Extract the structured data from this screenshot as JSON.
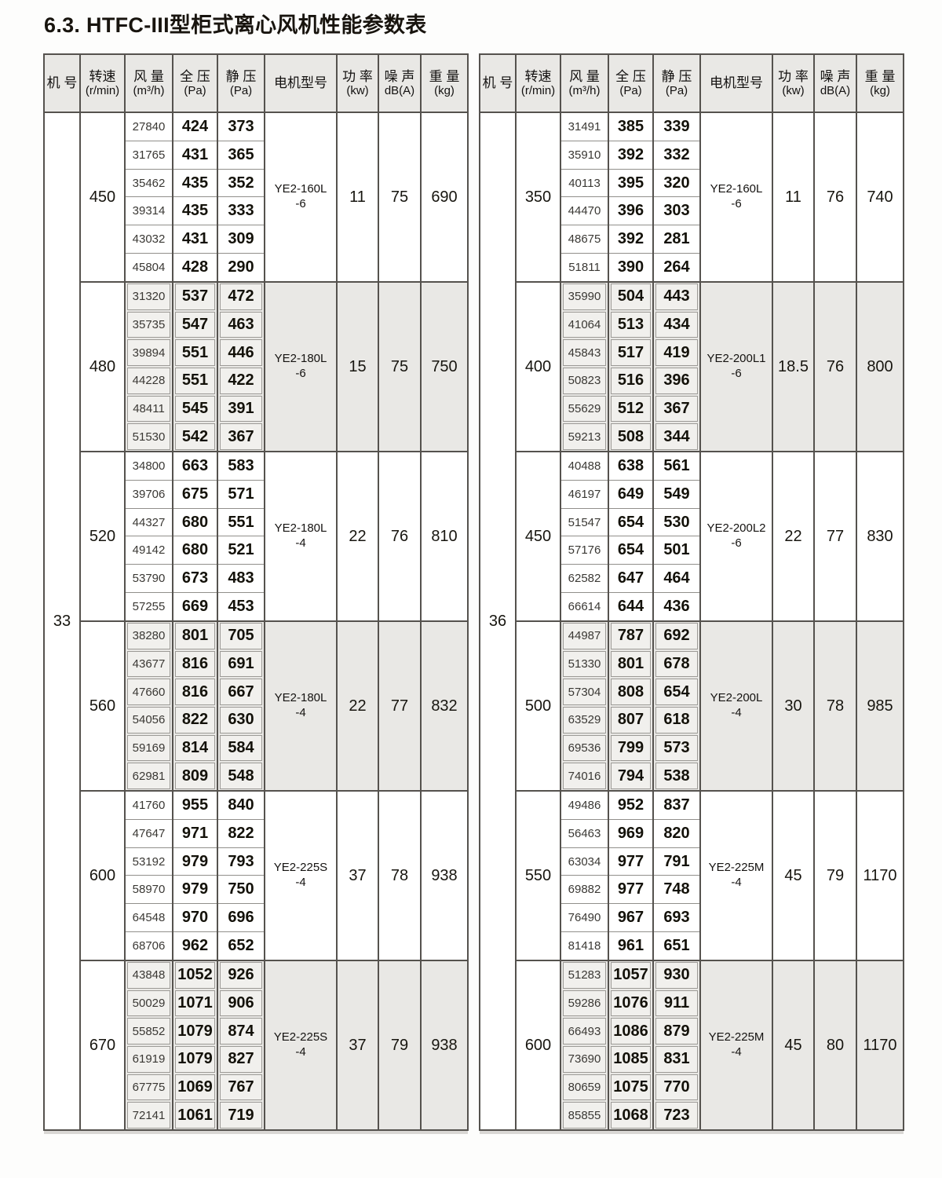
{
  "page": {
    "title": "6.3. HTFC-III型柜式离心风机性能参数表"
  },
  "tables": [
    {
      "unit_no": "33",
      "columns": [
        {
          "l1": "机 号",
          "l2": ""
        },
        {
          "l1": "转速",
          "l2": "(r/min)"
        },
        {
          "l1": "风 量",
          "l2": "(m³/h)"
        },
        {
          "l1": "全 压",
          "l2": "(Pa)"
        },
        {
          "l1": "静 压",
          "l2": "(Pa)"
        },
        {
          "l1": "电机型号",
          "l2": ""
        },
        {
          "l1": "功 率",
          "l2": "(kw)"
        },
        {
          "l1": "噪 声",
          "l2": "dB(A)"
        },
        {
          "l1": "重 量",
          "l2": "(kg)"
        }
      ],
      "groups": [
        {
          "speed": "450",
          "shaded": false,
          "flow": [
            "27840",
            "31765",
            "35462",
            "39314",
            "43032",
            "45804"
          ],
          "total_pressure": [
            "424",
            "431",
            "435",
            "435",
            "431",
            "428"
          ],
          "static_pressure": [
            "373",
            "365",
            "352",
            "333",
            "309",
            "290"
          ],
          "motor_l1": "YE2-160L",
          "motor_l2": "-6",
          "power": "11",
          "noise": "75",
          "weight": "690"
        },
        {
          "speed": "480",
          "shaded": true,
          "flow": [
            "31320",
            "35735",
            "39894",
            "44228",
            "48411",
            "51530"
          ],
          "total_pressure": [
            "537",
            "547",
            "551",
            "551",
            "545",
            "542"
          ],
          "static_pressure": [
            "472",
            "463",
            "446",
            "422",
            "391",
            "367"
          ],
          "motor_l1": "YE2-180L",
          "motor_l2": "-6",
          "power": "15",
          "noise": "75",
          "weight": "750"
        },
        {
          "speed": "520",
          "shaded": false,
          "flow": [
            "34800",
            "39706",
            "44327",
            "49142",
            "53790",
            "57255"
          ],
          "total_pressure": [
            "663",
            "675",
            "680",
            "680",
            "673",
            "669"
          ],
          "static_pressure": [
            "583",
            "571",
            "551",
            "521",
            "483",
            "453"
          ],
          "motor_l1": "YE2-180L",
          "motor_l2": "-4",
          "power": "22",
          "noise": "76",
          "weight": "810"
        },
        {
          "speed": "560",
          "shaded": true,
          "flow": [
            "38280",
            "43677",
            "47660",
            "54056",
            "59169",
            "62981"
          ],
          "total_pressure": [
            "801",
            "816",
            "816",
            "822",
            "814",
            "809"
          ],
          "static_pressure": [
            "705",
            "691",
            "667",
            "630",
            "584",
            "548"
          ],
          "motor_l1": "YE2-180L",
          "motor_l2": "-4",
          "power": "22",
          "noise": "77",
          "weight": "832"
        },
        {
          "speed": "600",
          "shaded": false,
          "flow": [
            "41760",
            "47647",
            "53192",
            "58970",
            "64548",
            "68706"
          ],
          "total_pressure": [
            "955",
            "971",
            "979",
            "979",
            "970",
            "962"
          ],
          "static_pressure": [
            "840",
            "822",
            "793",
            "750",
            "696",
            "652"
          ],
          "motor_l1": "YE2-225S",
          "motor_l2": "-4",
          "power": "37",
          "noise": "78",
          "weight": "938"
        },
        {
          "speed": "670",
          "shaded": true,
          "flow": [
            "43848",
            "50029",
            "55852",
            "61919",
            "67775",
            "72141"
          ],
          "total_pressure": [
            "1052",
            "1071",
            "1079",
            "1079",
            "1069",
            "1061"
          ],
          "static_pressure": [
            "926",
            "906",
            "874",
            "827",
            "767",
            "719"
          ],
          "motor_l1": "YE2-225S",
          "motor_l2": "-4",
          "power": "37",
          "noise": "79",
          "weight": "938"
        }
      ]
    },
    {
      "unit_no": "36",
      "columns": [
        {
          "l1": "机 号",
          "l2": ""
        },
        {
          "l1": "转速",
          "l2": "(r/min)"
        },
        {
          "l1": "风 量",
          "l2": "(m³/h)"
        },
        {
          "l1": "全 压",
          "l2": "(Pa)"
        },
        {
          "l1": "静 压",
          "l2": "(Pa)"
        },
        {
          "l1": "电机型号",
          "l2": ""
        },
        {
          "l1": "功 率",
          "l2": "(kw)"
        },
        {
          "l1": "噪 声",
          "l2": "dB(A)"
        },
        {
          "l1": "重 量",
          "l2": "(kg)"
        }
      ],
      "groups": [
        {
          "speed": "350",
          "shaded": false,
          "flow": [
            "31491",
            "35910",
            "40113",
            "44470",
            "48675",
            "51811"
          ],
          "total_pressure": [
            "385",
            "392",
            "395",
            "396",
            "392",
            "390"
          ],
          "static_pressure": [
            "339",
            "332",
            "320",
            "303",
            "281",
            "264"
          ],
          "motor_l1": "YE2-160L",
          "motor_l2": "-6",
          "power": "11",
          "noise": "76",
          "weight": "740"
        },
        {
          "speed": "400",
          "shaded": true,
          "flow": [
            "35990",
            "41064",
            "45843",
            "50823",
            "55629",
            "59213"
          ],
          "total_pressure": [
            "504",
            "513",
            "517",
            "516",
            "512",
            "508"
          ],
          "static_pressure": [
            "443",
            "434",
            "419",
            "396",
            "367",
            "344"
          ],
          "motor_l1": "YE2-200L1",
          "motor_l2": "-6",
          "power": "18.5",
          "noise": "76",
          "weight": "800"
        },
        {
          "speed": "450",
          "shaded": false,
          "flow": [
            "40488",
            "46197",
            "51547",
            "57176",
            "62582",
            "66614"
          ],
          "total_pressure": [
            "638",
            "649",
            "654",
            "654",
            "647",
            "644"
          ],
          "static_pressure": [
            "561",
            "549",
            "530",
            "501",
            "464",
            "436"
          ],
          "motor_l1": "YE2-200L2",
          "motor_l2": "-6",
          "power": "22",
          "noise": "77",
          "weight": "830"
        },
        {
          "speed": "500",
          "shaded": true,
          "flow": [
            "44987",
            "51330",
            "57304",
            "63529",
            "69536",
            "74016"
          ],
          "total_pressure": [
            "787",
            "801",
            "808",
            "807",
            "799",
            "794"
          ],
          "static_pressure": [
            "692",
            "678",
            "654",
            "618",
            "573",
            "538"
          ],
          "motor_l1": "YE2-200L",
          "motor_l2": "-4",
          "power": "30",
          "noise": "78",
          "weight": "985"
        },
        {
          "speed": "550",
          "shaded": false,
          "flow": [
            "49486",
            "56463",
            "63034",
            "69882",
            "76490",
            "81418"
          ],
          "total_pressure": [
            "952",
            "969",
            "977",
            "977",
            "967",
            "961"
          ],
          "static_pressure": [
            "837",
            "820",
            "791",
            "748",
            "693",
            "651"
          ],
          "motor_l1": "YE2-225M",
          "motor_l2": "-4",
          "power": "45",
          "noise": "79",
          "weight": "1170"
        },
        {
          "speed": "600",
          "shaded": true,
          "flow": [
            "51283",
            "59286",
            "66493",
            "73690",
            "80659",
            "85855"
          ],
          "total_pressure": [
            "1057",
            "1076",
            "1086",
            "1085",
            "1075",
            "1068"
          ],
          "static_pressure": [
            "930",
            "911",
            "879",
            "831",
            "770",
            "723"
          ],
          "motor_l1": "YE2-225M",
          "motor_l2": "-4",
          "power": "45",
          "noise": "80",
          "weight": "1170"
        }
      ]
    }
  ]
}
